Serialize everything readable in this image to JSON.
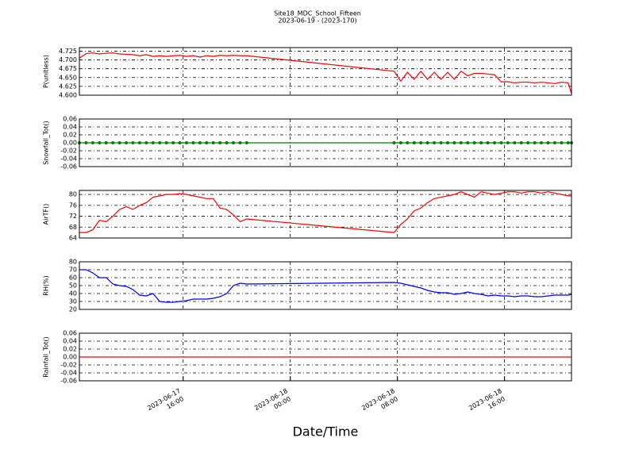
{
  "title": "Site18_MDC_School_Fifteen",
  "subtitle": "2023-06-19 - (2023-170)",
  "x_label": "Date/Time",
  "x": [
    "2023-06-17 08:15",
    "2023-06-17 08:45",
    "2023-06-17 09:15",
    "2023-06-17 09:45",
    "2023-06-17 10:15",
    "2023-06-17 10:45",
    "2023-06-17 11:15",
    "2023-06-17 11:45",
    "2023-06-17 12:15",
    "2023-06-17 12:45",
    "2023-06-17 13:15",
    "2023-06-17 13:45",
    "2023-06-17 14:15",
    "2023-06-17 14:45",
    "2023-06-17 15:15",
    "2023-06-17 15:45",
    "2023-06-17 16:15",
    "2023-06-17 16:45",
    "2023-06-17 17:15",
    "2023-06-17 17:45",
    "2023-06-17 18:15",
    "2023-06-17 18:45",
    "2023-06-17 19:15",
    "2023-06-17 19:45",
    "2023-06-17 20:15",
    "2023-06-17 20:45",
    "2023-06-18 07:45",
    "2023-06-18 08:15",
    "2023-06-18 08:45",
    "2023-06-18 09:15",
    "2023-06-18 09:45",
    "2023-06-18 10:15",
    "2023-06-18 10:45",
    "2023-06-18 11:15",
    "2023-06-18 11:45",
    "2023-06-18 12:15",
    "2023-06-18 12:45",
    "2023-06-18 13:15",
    "2023-06-18 13:45",
    "2023-06-18 14:15",
    "2023-06-18 14:45",
    "2023-06-18 15:15",
    "2023-06-18 15:45",
    "2023-06-18 16:15",
    "2023-06-18 16:45",
    "2023-06-18 17:15",
    "2023-06-18 17:45",
    "2023-06-18 18:15",
    "2023-06-18 18:45",
    "2023-06-18 19:15",
    "2023-06-18 19:45",
    "2023-06-18 20:15",
    "2023-06-18 20:45",
    "2023-06-18 21:00"
  ],
  "xlim": [
    "2023-06-17 08:15",
    "2023-06-18 21:00"
  ],
  "xticks": [
    {
      "value": "2023-06-17 16:00",
      "label": [
        "2023-06-17",
        "16:00"
      ]
    },
    {
      "value": "2023-06-18 00:00",
      "label": [
        "2023-06-18",
        "00:00"
      ]
    },
    {
      "value": "2023-06-18 08:00",
      "label": [
        "2023-06-18",
        "08:00"
      ]
    },
    {
      "value": "2023-06-18 16:00",
      "label": [
        "2023-06-18",
        "16:00"
      ]
    }
  ],
  "chart_data": [
    {
      "type": "line",
      "ylabel": "P(unitless)",
      "color": "#ff0000",
      "marker": false,
      "grid": true,
      "values": [
        4.705,
        4.718,
        4.72,
        4.717,
        4.719,
        4.72,
        4.717,
        4.716,
        4.715,
        4.712,
        4.715,
        4.71,
        4.712,
        4.71,
        4.712,
        4.713,
        4.71,
        4.712,
        4.708,
        4.712,
        4.71,
        4.713,
        4.712,
        4.713,
        4.712,
        4.712,
        4.668,
        4.64,
        4.665,
        4.645,
        4.668,
        4.645,
        4.665,
        4.645,
        4.665,
        4.645,
        4.668,
        4.655,
        4.662,
        4.662,
        4.66,
        4.658,
        4.638,
        4.638,
        4.635,
        4.637,
        4.637,
        4.635,
        4.637,
        4.635,
        4.633,
        4.637,
        4.635,
        4.605
      ],
      "ylim": [
        4.6,
        4.735
      ],
      "yticks": [
        {
          "value": 4.6,
          "label": "4.600"
        },
        {
          "value": 4.625,
          "label": "4.625"
        },
        {
          "value": 4.65,
          "label": "4.650"
        },
        {
          "value": 4.675,
          "label": "4.675"
        },
        {
          "value": 4.7,
          "label": "4.700"
        },
        {
          "value": 4.725,
          "label": "4.725"
        }
      ]
    },
    {
      "type": "line",
      "ylabel": "Snowfall_Tot()",
      "color": "#008000",
      "marker": true,
      "grid": true,
      "values": [
        0,
        0,
        0,
        0,
        0,
        0,
        0,
        0,
        0,
        0,
        0,
        0,
        0,
        0,
        0,
        0,
        0,
        0,
        0,
        0,
        0,
        0,
        0,
        0,
        0,
        0,
        0,
        0,
        0,
        0,
        0,
        0,
        0,
        0,
        0,
        0,
        0,
        0,
        0,
        0,
        0,
        0,
        0,
        0,
        0,
        0,
        0,
        0,
        0,
        0,
        0,
        0,
        0,
        0
      ],
      "ylim": [
        -0.06,
        0.06
      ],
      "yticks": [
        -0.06,
        -0.04,
        -0.02,
        {
          "value": 0,
          "label": "0.00"
        },
        0.02,
        0.04,
        0.06
      ]
    },
    {
      "type": "line",
      "ylabel": "AirTF()",
      "color": "#ff0000",
      "marker": false,
      "grid": true,
      "values": [
        66,
        66,
        67,
        70.5,
        70,
        72,
        74.5,
        75.5,
        74.5,
        76,
        77,
        79,
        79.5,
        80,
        80,
        80.3,
        80,
        79.5,
        79,
        78.5,
        78.5,
        75,
        74.5,
        72.5,
        70,
        71,
        66,
        69,
        71,
        74,
        75,
        77,
        78.5,
        79,
        79.5,
        80,
        81,
        80,
        79,
        81,
        80.5,
        80,
        80.5,
        81,
        81,
        80.5,
        81,
        81,
        80.5,
        81,
        80.5,
        80,
        79.5,
        79.5
      ],
      "ylim": [
        64,
        81.5
      ],
      "yticks": [
        64,
        68,
        72,
        76,
        80
      ]
    },
    {
      "type": "line",
      "ylabel": "RH(%)",
      "color": "#0000ff",
      "marker": false,
      "grid": true,
      "values": [
        70,
        70,
        66,
        60,
        60,
        52,
        50,
        49,
        45,
        38,
        37,
        40,
        30,
        29,
        29,
        30,
        31,
        33,
        33,
        33,
        34,
        36,
        40,
        50,
        53,
        52,
        54,
        53,
        51,
        49,
        47,
        44,
        42,
        41,
        41,
        39,
        40,
        42,
        40,
        39,
        37,
        38,
        37,
        37,
        36,
        37,
        37,
        36,
        36,
        37,
        38,
        38,
        38,
        39
      ],
      "ylim": [
        20,
        80
      ],
      "yticks": [
        20,
        30,
        40,
        50,
        60,
        70,
        80
      ]
    },
    {
      "type": "line",
      "ylabel": "Rainfall_Tot()",
      "color": "#ff0000",
      "marker": false,
      "grid": true,
      "values": [
        0,
        0,
        0,
        0,
        0,
        0,
        0,
        0,
        0,
        0,
        0,
        0,
        0,
        0,
        0,
        0,
        0,
        0,
        0,
        0,
        0,
        0,
        0,
        0,
        0,
        0,
        0,
        0,
        0,
        0,
        0,
        0,
        0,
        0,
        0,
        0,
        0,
        0,
        0,
        0,
        0,
        0,
        0,
        0,
        0,
        0,
        0,
        0,
        0,
        0,
        0,
        0,
        0,
        0
      ],
      "ylim": [
        -0.06,
        0.06
      ],
      "yticks": [
        -0.06,
        -0.04,
        -0.02,
        {
          "value": 0,
          "label": "0.00"
        },
        0.02,
        0.04,
        0.06
      ]
    }
  ]
}
